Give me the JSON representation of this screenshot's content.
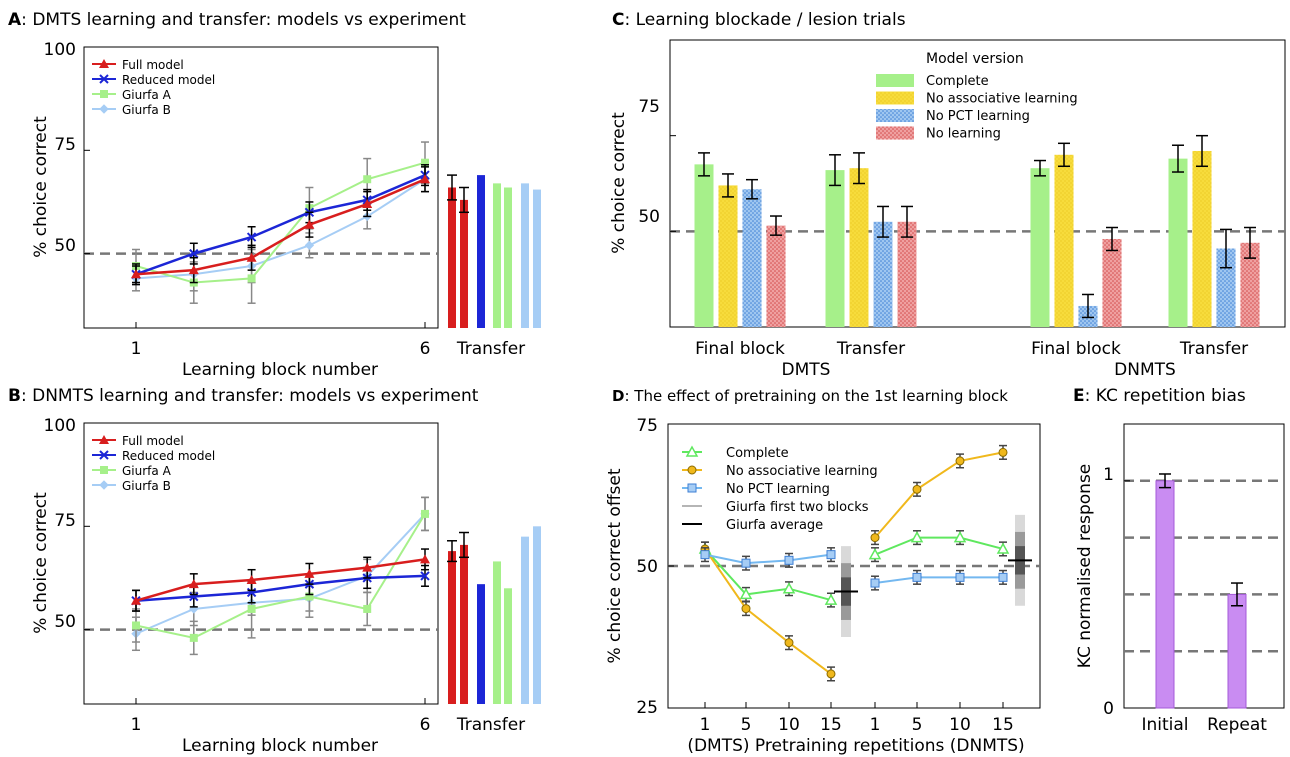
{
  "chart_data": [
    {
      "id": "A",
      "type": "line",
      "panel_letter": "A",
      "title": "DMTS learning and transfer: models vs experiment",
      "xlabel": "Learning block number",
      "ylabel": "% choice correct",
      "x": [
        1,
        2,
        3,
        4,
        5,
        6
      ],
      "x_ticks": [
        "1",
        "6"
      ],
      "y_ticks": [
        "50",
        "75",
        "100"
      ],
      "ylim": [
        32,
        100
      ],
      "reference_line": 50,
      "legend_position": "top-left",
      "transfer_label": "Transfer",
      "series": [
        {
          "name": "Full model",
          "color": "#d81e1e",
          "values": [
            45,
            46,
            49,
            57,
            62,
            68
          ],
          "errors": [
            2.5,
            3,
            3,
            3,
            3,
            3
          ],
          "transfer": [
            66,
            63
          ],
          "transfer_errors": [
            3,
            3
          ]
        },
        {
          "name": "Reduced model",
          "color": "#1c26d6",
          "values": [
            45,
            50,
            54,
            60,
            63,
            69
          ],
          "errors": [
            2,
            2.5,
            2.5,
            2.5,
            2.5,
            2.5
          ],
          "transfer": [
            69
          ],
          "transfer_errors": [
            0
          ]
        },
        {
          "name": "Giurfa A",
          "color": "#a6f08a",
          "values": [
            47,
            43,
            44,
            61,
            68,
            72
          ],
          "errors": [
            4,
            5,
            6,
            5,
            5,
            5
          ],
          "transfer": [
            67,
            66
          ],
          "transfer_errors": [
            0,
            0
          ]
        },
        {
          "name": "Giurfa B",
          "color": "#a6cdf5",
          "values": [
            44,
            45,
            47,
            52,
            59,
            68
          ],
          "errors": [
            3,
            4,
            4,
            3,
            3,
            3
          ],
          "transfer": [
            67,
            65.5
          ],
          "transfer_errors": [
            0,
            0
          ]
        }
      ]
    },
    {
      "id": "B",
      "type": "line",
      "panel_letter": "B",
      "title": "DNMTS learning and transfer: models vs experiment",
      "xlabel": "Learning block number",
      "ylabel": "% choice correct",
      "x": [
        1,
        2,
        3,
        4,
        5,
        6
      ],
      "x_ticks": [
        "1",
        "6"
      ],
      "y_ticks": [
        "50",
        "75",
        "100"
      ],
      "ylim": [
        32,
        100
      ],
      "reference_line": 50,
      "legend_position": "top-left",
      "transfer_label": "Transfer",
      "series": [
        {
          "name": "Full model",
          "color": "#d81e1e",
          "values": [
            57,
            61,
            62,
            63.5,
            65,
            67
          ],
          "errors": [
            2.5,
            2.5,
            2.5,
            2.5,
            2.5,
            2.5
          ],
          "transfer": [
            69,
            70.5
          ],
          "transfer_errors": [
            2.5,
            3
          ]
        },
        {
          "name": "Reduced model",
          "color": "#1c26d6",
          "values": [
            57,
            58,
            59,
            61,
            62.5,
            63
          ],
          "errors": [
            2.5,
            2.5,
            2.5,
            2.5,
            2.5,
            2.5
          ],
          "transfer": [
            61
          ],
          "transfer_errors": [
            0
          ]
        },
        {
          "name": "Giurfa A",
          "color": "#a6f08a",
          "values": [
            51,
            48,
            55,
            58,
            55,
            78
          ],
          "errors": [
            4,
            4,
            7,
            5,
            4,
            4
          ],
          "transfer": [
            66.5,
            60
          ],
          "transfer_errors": [
            0,
            0
          ]
        },
        {
          "name": "Giurfa B",
          "color": "#a6cdf5",
          "values": [
            49,
            55,
            56.5,
            57.5,
            63,
            78
          ],
          "errors": [
            4,
            4,
            3,
            3,
            4,
            4
          ],
          "transfer": [
            72.5,
            75
          ],
          "transfer_errors": [
            0,
            0
          ]
        }
      ]
    },
    {
      "id": "C",
      "type": "bar",
      "panel_letter": "C",
      "title": "Learning blockade / lesion trials",
      "ylabel": "% choice correct",
      "y_ticks": [
        "50",
        "75"
      ],
      "ylim": [
        25,
        100
      ],
      "reference_line": 50,
      "legend_title": "Model version",
      "legend_position": "top-center",
      "categories": [
        "Final block",
        "Transfer",
        "Final block",
        "Transfer"
      ],
      "group_labels": [
        "DMTS",
        "DNMTS"
      ],
      "series": [
        {
          "name": "Complete",
          "color": "#a6f08a",
          "values": [
            67.5,
            66,
            66.5,
            69
          ],
          "errors": [
            3,
            4,
            2,
            3.5
          ]
        },
        {
          "name": "No associative learning",
          "color": "#f7dc3c",
          "values": [
            62,
            66.5,
            70,
            71
          ],
          "errors": [
            3,
            4,
            3,
            4
          ]
        },
        {
          "name": "No PCT learning",
          "color": "#9fc6f0",
          "values": [
            61,
            52.5,
            30.5,
            45.5
          ],
          "errors": [
            2.5,
            4,
            3,
            5
          ]
        },
        {
          "name": "No learning",
          "color": "#e87f7f",
          "values": [
            51.5,
            52.5,
            48,
            47
          ],
          "errors": [
            2.5,
            4,
            3,
            4
          ]
        }
      ]
    },
    {
      "id": "D",
      "type": "line",
      "panel_letter": "D",
      "title": "The effect of pretraining on the 1st learning block",
      "xlabel": "(DMTS) Pretraining repetitions (DNMTS)",
      "ylabel": "% choice correct offset",
      "x_ticks": [
        "1",
        "5",
        "10",
        "15",
        "1",
        "5",
        "10",
        "15"
      ],
      "y_ticks": [
        "25",
        "50",
        "75"
      ],
      "ylim": [
        25,
        75
      ],
      "reference_line": 50,
      "legend_position": "top-left",
      "series": [
        {
          "name": "Complete",
          "color": "#5fe85f",
          "marker": "triangle",
          "dmts": [
            53,
            45,
            46,
            44
          ],
          "dnmts": [
            52,
            55,
            55,
            53
          ]
        },
        {
          "name": "No associative learning",
          "color": "#f0b81c",
          "marker": "circle",
          "dmts": [
            53,
            42.5,
            36.5,
            31
          ],
          "dnmts": [
            55,
            63.5,
            68.5,
            70
          ]
        },
        {
          "name": "No PCT learning",
          "color": "#74b8f0",
          "marker": "square",
          "dmts": [
            52,
            50.5,
            51,
            52
          ],
          "dnmts": [
            47,
            48,
            48,
            48
          ]
        }
      ],
      "reference_entries": [
        {
          "name": "Giurfa first two blocks",
          "color": "#b5b5b5"
        },
        {
          "name": "Giurfa average",
          "color": "#000000"
        }
      ],
      "giurfa_average": {
        "dmts": 45.5,
        "dnmts": 51
      }
    },
    {
      "id": "E",
      "type": "bar",
      "panel_letter": "E",
      "title": "KC repetition bias",
      "ylabel": "KC normalised response",
      "categories": [
        "Initial",
        "Repeat"
      ],
      "values": [
        1,
        0.5
      ],
      "errors": [
        0.03,
        0.05
      ],
      "color": "#c98cf2",
      "y_ticks": [
        "0",
        "1"
      ],
      "ylim": [
        0,
        1.25
      ]
    }
  ]
}
